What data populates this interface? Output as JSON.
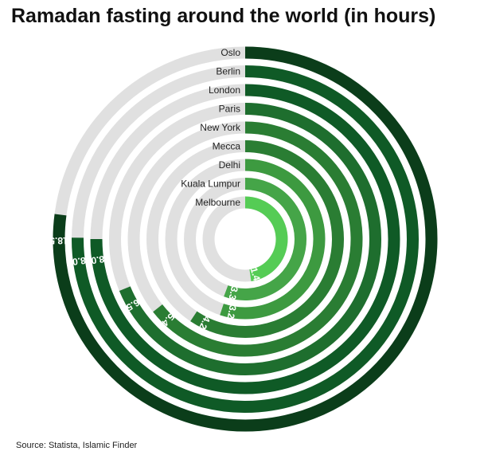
{
  "title": "Ramadan fasting around the world (in hours)",
  "source": "Source: Statista, Islamic Finder",
  "chart_data": {
    "type": "radial-bar",
    "title": "Ramadan fasting around the world (in hours)",
    "max_value": 24,
    "track_color": "#e0e0e0",
    "series": [
      {
        "name": "Oslo",
        "value": 18.5,
        "label": "18.5",
        "color": "#0b3d1a"
      },
      {
        "name": "Berlin",
        "value": 18.03,
        "label": "18.03",
        "color": "#0f5a26"
      },
      {
        "name": "London",
        "value": 18.0,
        "label": "18.00",
        "color": "#0f5a26"
      },
      {
        "name": "Paris",
        "value": 16.51,
        "label": "16.51",
        "color": "#1e6e2e"
      },
      {
        "name": "New York",
        "value": 15.45,
        "label": "15.45",
        "color": "#2a7d33"
      },
      {
        "name": "Mecca",
        "value": 14.25,
        "label": "14.25",
        "color": "#2a7d33"
      },
      {
        "name": "Delhi",
        "value": 13.23,
        "label": "13.23",
        "color": "#3d9a40"
      },
      {
        "name": "Kuala Lumpur",
        "value": 13.36,
        "label": "13.36",
        "color": "#45a548"
      },
      {
        "name": "Melbourne",
        "value": 11.46,
        "label": "11.46",
        "color": "#55cc55"
      }
    ]
  }
}
